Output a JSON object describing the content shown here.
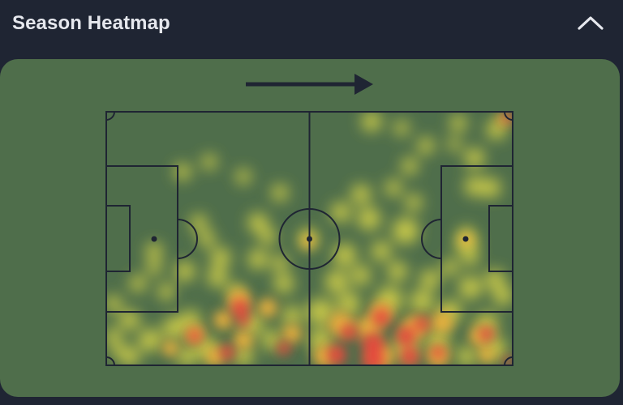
{
  "header": {
    "title": "Season Heatmap",
    "collapse_icon": "chevron-up-icon"
  },
  "heatmap": {
    "attack_direction_icon": "arrow-right-icon",
    "attack_direction": "right",
    "colors": {
      "pitch": "#4f6e4b",
      "lines": "#1f2533",
      "low": "#d4d24a",
      "mid": "#f1b43c",
      "high": "#e8443c"
    }
  }
}
